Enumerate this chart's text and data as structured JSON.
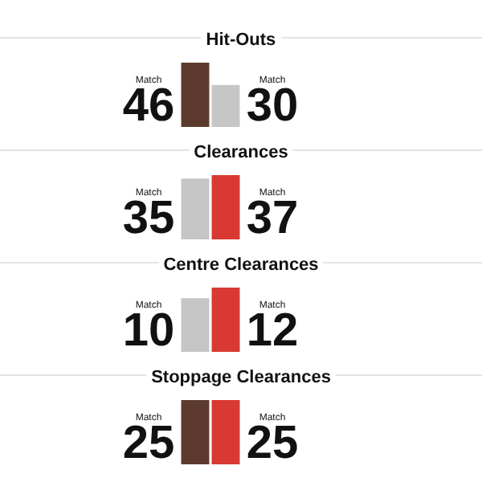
{
  "chart_data": [
    {
      "type": "bar",
      "title": "Hit-Outs",
      "categories": [
        null,
        null
      ],
      "values": [
        46,
        30
      ],
      "colors": [
        "#5c3b2e",
        "#c6c6c6"
      ],
      "data_labels": true,
      "annotations": [
        "Match",
        "Match"
      ]
    },
    {
      "type": "bar",
      "title": "Clearances",
      "categories": [
        null,
        null
      ],
      "values": [
        35,
        37
      ],
      "colors": [
        "#c6c6c6",
        "#d83a33"
      ],
      "data_labels": true,
      "annotations": [
        "Match",
        "Match"
      ]
    },
    {
      "type": "bar",
      "title": "Centre Clearances",
      "categories": [
        null,
        null
      ],
      "values": [
        10,
        12
      ],
      "colors": [
        "#c6c6c6",
        "#d83a33"
      ],
      "data_labels": true,
      "annotations": [
        "Match",
        "Match"
      ]
    },
    {
      "type": "bar",
      "title": "Stoppage Clearances",
      "categories": [
        null,
        null
      ],
      "values": [
        25,
        25
      ],
      "colors": [
        "#5c3b2e",
        "#d83a33"
      ],
      "data_labels": true,
      "annotations": [
        "Match",
        "Match"
      ]
    }
  ]
}
